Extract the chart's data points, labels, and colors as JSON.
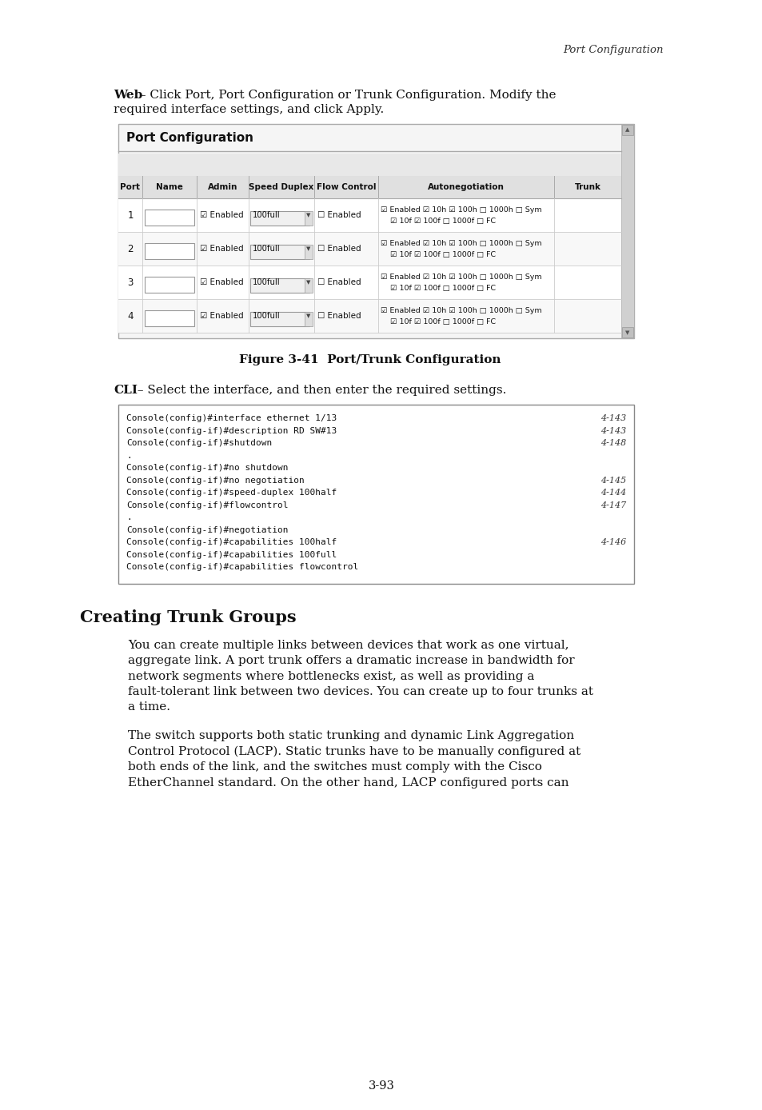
{
  "page_header": "Port Configuration",
  "web_bold": "Web",
  "web_rest": " – Click Port, Port Configuration or Trunk Configuration. Modify the\nrequired interface settings, and click Apply.",
  "figure_title": "Figure 3-41  Port/Trunk Configuration",
  "cli_bold": "CLI",
  "cli_rest": " – Select the interface, and then enter the required settings.",
  "cli_lines": [
    {
      "text": "Console(config)#interface ethernet 1/13",
      "ref": "4-143"
    },
    {
      "text": "Console(config-if)#description RD SW#13",
      "ref": "4-143"
    },
    {
      "text": "Console(config-if)#shutdown",
      "ref": "4-148"
    },
    {
      "text": ".",
      "ref": ""
    },
    {
      "text": "Console(config-if)#no shutdown",
      "ref": ""
    },
    {
      "text": "Console(config-if)#no negotiation",
      "ref": "4-145"
    },
    {
      "text": "Console(config-if)#speed-duplex 100half",
      "ref": "4-144"
    },
    {
      "text": "Console(config-if)#flowcontrol",
      "ref": "4-147"
    },
    {
      "text": ".",
      "ref": ""
    },
    {
      "text": "Console(config-if)#negotiation",
      "ref": ""
    },
    {
      "text": "Console(config-if)#capabilities 100half",
      "ref": "4-146"
    },
    {
      "text": "Console(config-if)#capabilities 100full",
      "ref": ""
    },
    {
      "text": "Console(config-if)#capabilities flowcontrol",
      "ref": ""
    }
  ],
  "section_title": "Creating Trunk Groups",
  "body_text1_lines": [
    "You can create multiple links between devices that work as one virtual,",
    "aggregate link. A port trunk offers a dramatic increase in bandwidth for",
    "network segments where bottlenecks exist, as well as providing a",
    "fault-tolerant link between two devices. You can create up to four trunks at",
    "a time."
  ],
  "body_text2_lines": [
    "The switch supports both static trunking and dynamic Link Aggregation",
    "Control Protocol (LACP). Static trunks have to be manually configured at",
    "both ends of the link, and the switches must comply with the Cisco",
    "EtherChannel standard. On the other hand, LACP configured ports can"
  ],
  "page_number": "3-93",
  "bg_color": "#ffffff",
  "code_bg": "#ffffff",
  "code_border": "#888888"
}
